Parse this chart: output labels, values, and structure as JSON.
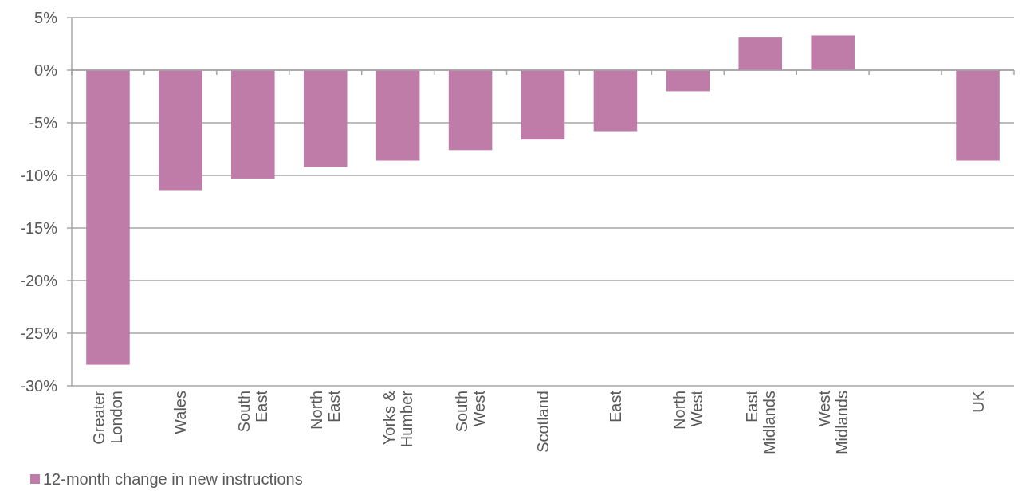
{
  "chart_data": {
    "type": "bar",
    "categories": [
      "Greater London",
      "Wales",
      "South East",
      "North East",
      "Yorks & Humber",
      "South West",
      "Scotland",
      "East",
      "North West",
      "East Midlands",
      "West Midlands",
      null,
      "UK"
    ],
    "series": [
      {
        "name": "12-month change in new instructions",
        "color": "#c07ca9",
        "values": [
          -28.0,
          -11.4,
          -10.3,
          -9.2,
          -8.6,
          -7.6,
          -6.6,
          -5.8,
          -2.0,
          3.1,
          3.3,
          null,
          -8.6
        ]
      }
    ],
    "ylim": [
      -30,
      5
    ],
    "yticks": [
      {
        "value": -30,
        "label": "-30%"
      },
      {
        "value": -25,
        "label": "-25%"
      },
      {
        "value": -20,
        "label": "-20%"
      },
      {
        "value": -15,
        "label": "-15%"
      },
      {
        "value": -10,
        "label": "-10%"
      },
      {
        "value": -5,
        "label": "-5%"
      },
      {
        "value": 0,
        "label": "0%"
      },
      {
        "value": 5,
        "label": "5%"
      }
    ],
    "grid": "y",
    "legend": "bottom left"
  }
}
